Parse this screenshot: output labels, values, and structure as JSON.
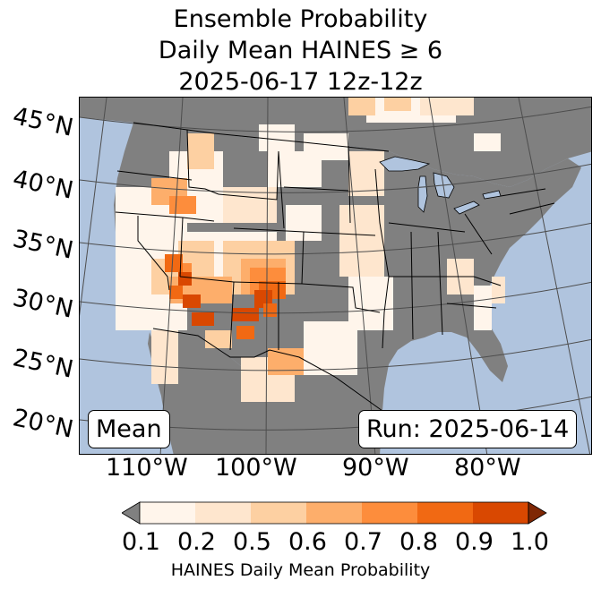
{
  "title": {
    "line1": "Ensemble Probability",
    "line2": "Daily Mean HAINES ≥ 6",
    "line3": "2025-06-17 12z-12z"
  },
  "map": {
    "ocean_color": "#b0c4de",
    "land_nodata_color": "#808080",
    "lakes_color": "#b0c4de",
    "latitude_labels": [
      "45°N",
      "40°N",
      "35°N",
      "30°N",
      "25°N",
      "20°N"
    ],
    "longitude_labels": [
      "110°W",
      "100°W",
      "90°W",
      "80°W"
    ],
    "left_box": "Mean",
    "right_box": "Run: 2025-06-14"
  },
  "colorbar": {
    "title": "HAINES Daily Mean Probability",
    "ticks": [
      "0.1",
      "0.2",
      "0.5",
      "0.6",
      "0.7",
      "0.8",
      "0.9",
      "1.0"
    ],
    "under_color": "#808080",
    "over_color": "#7f2704",
    "colors": [
      "#fff5eb",
      "#fee6ce",
      "#fdd0a2",
      "#fdae6b",
      "#fd8d3c",
      "#f16913",
      "#d94801"
    ]
  }
}
